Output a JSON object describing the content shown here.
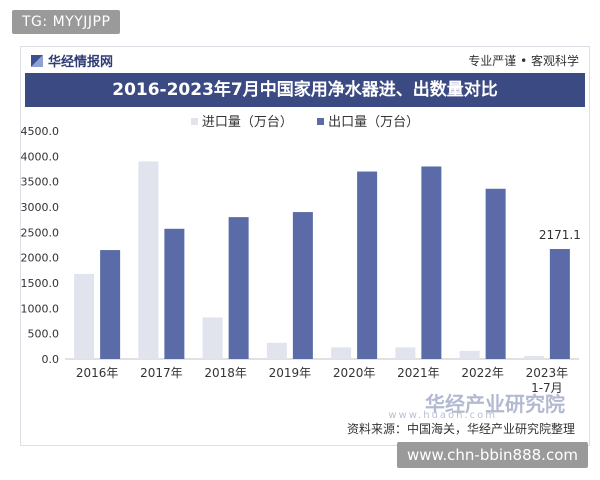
{
  "overlay_tag_top": "TG: MYYJJPP",
  "overlay_tag_bottom": "www.chn-bbin888.com",
  "header": {
    "brand": "华经情报网",
    "slogan": "专业严谨 • 客观科学"
  },
  "footer": {
    "source": "资料来源：中国海关，华经产业研究院整理",
    "watermark": "华经产业研究院",
    "watermark_url": "www.huaon.com"
  },
  "colors": {
    "import": "#e1e4ec",
    "export": "#5a6ba7",
    "title_bg": "#3b4a82"
  },
  "chart_data": {
    "type": "bar",
    "title": "2016-2023年7月中国家用净水器进、出数量对比",
    "categories": [
      "2016年",
      "2017年",
      "2018年",
      "2019年",
      "2020年",
      "2021年",
      "2022年",
      "2023年1-7月"
    ],
    "series": [
      {
        "name": "进口量（万台）",
        "values": [
          1680,
          3900,
          820,
          320,
          230,
          230,
          160,
          60
        ]
      },
      {
        "name": "出口量（万台）",
        "values": [
          2150,
          2570,
          2800,
          2900,
          3700,
          3800,
          3360,
          2171.1
        ]
      }
    ],
    "data_labels": {
      "7": "2171.1"
    },
    "ylim": [
      0,
      4500
    ],
    "yticks": [
      "0.0",
      "500.0",
      "1000.0",
      "1500.0",
      "2000.0",
      "2500.0",
      "3000.0",
      "3500.0",
      "4000.0",
      "4500.0"
    ],
    "grid": false,
    "legend_position": "top-center"
  }
}
